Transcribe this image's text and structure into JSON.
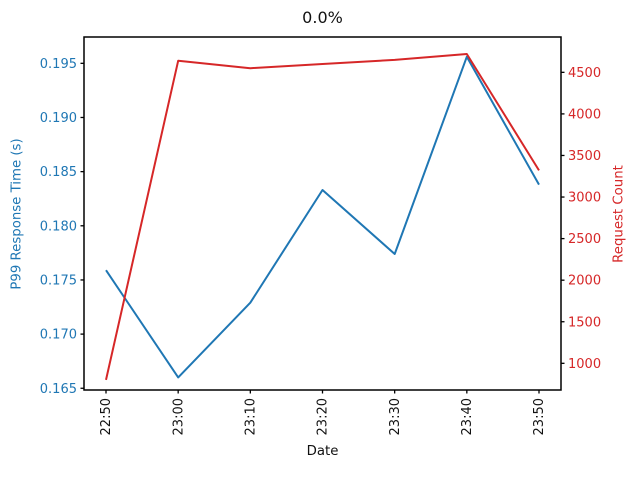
{
  "title": "0.0%",
  "axes": {
    "xlabel": "Date",
    "ylabel_left": "P99 Response Time (s)",
    "ylabel_right": "Request Count",
    "x_tick_labels": [
      "22:50",
      "23:00",
      "23:10",
      "23:20",
      "23:30",
      "23:40",
      "23:50"
    ],
    "y_tick_labels_left": [
      "0.165",
      "0.170",
      "0.175",
      "0.180",
      "0.185",
      "0.190",
      "0.195"
    ],
    "y_tick_labels_right": [
      "1000",
      "1500",
      "2000",
      "2500",
      "3000",
      "3500",
      "4000",
      "4500"
    ]
  },
  "colors": {
    "left_series": "#1f77b4",
    "right_series": "#d62728",
    "spine": "#000000",
    "title_text": "#111111"
  },
  "chart_data": {
    "type": "line",
    "title": "0.0%",
    "xlabel": "Date",
    "x": [
      "22:50",
      "23:00",
      "23:10",
      "23:20",
      "23:30",
      "23:40",
      "23:50"
    ],
    "series": [
      {
        "name": "P99 Response Time (s)",
        "axis": "left",
        "color": "#1f77b4",
        "values": [
          0.1759,
          0.166,
          0.1729,
          0.1833,
          0.1774,
          0.1956,
          0.1838
        ]
      },
      {
        "name": "Request Count",
        "axis": "right",
        "color": "#d62728",
        "values": [
          800,
          4640,
          4550,
          4600,
          4650,
          4720,
          3320
        ]
      }
    ],
    "ylabel_left": "P99 Response Time (s)",
    "ylabel_right": "Request Count",
    "ylim_left": [
      0.16484,
      0.19743
    ],
    "ylim_right": [
      679,
      4925
    ],
    "yticks_left": [
      0.165,
      0.17,
      0.175,
      0.18,
      0.185,
      0.19,
      0.195
    ],
    "yticks_right": [
      1000,
      1500,
      2000,
      2500,
      3000,
      3500,
      4000,
      4500
    ],
    "x_tick_rotation": 90,
    "grid": false,
    "legend": "none"
  }
}
